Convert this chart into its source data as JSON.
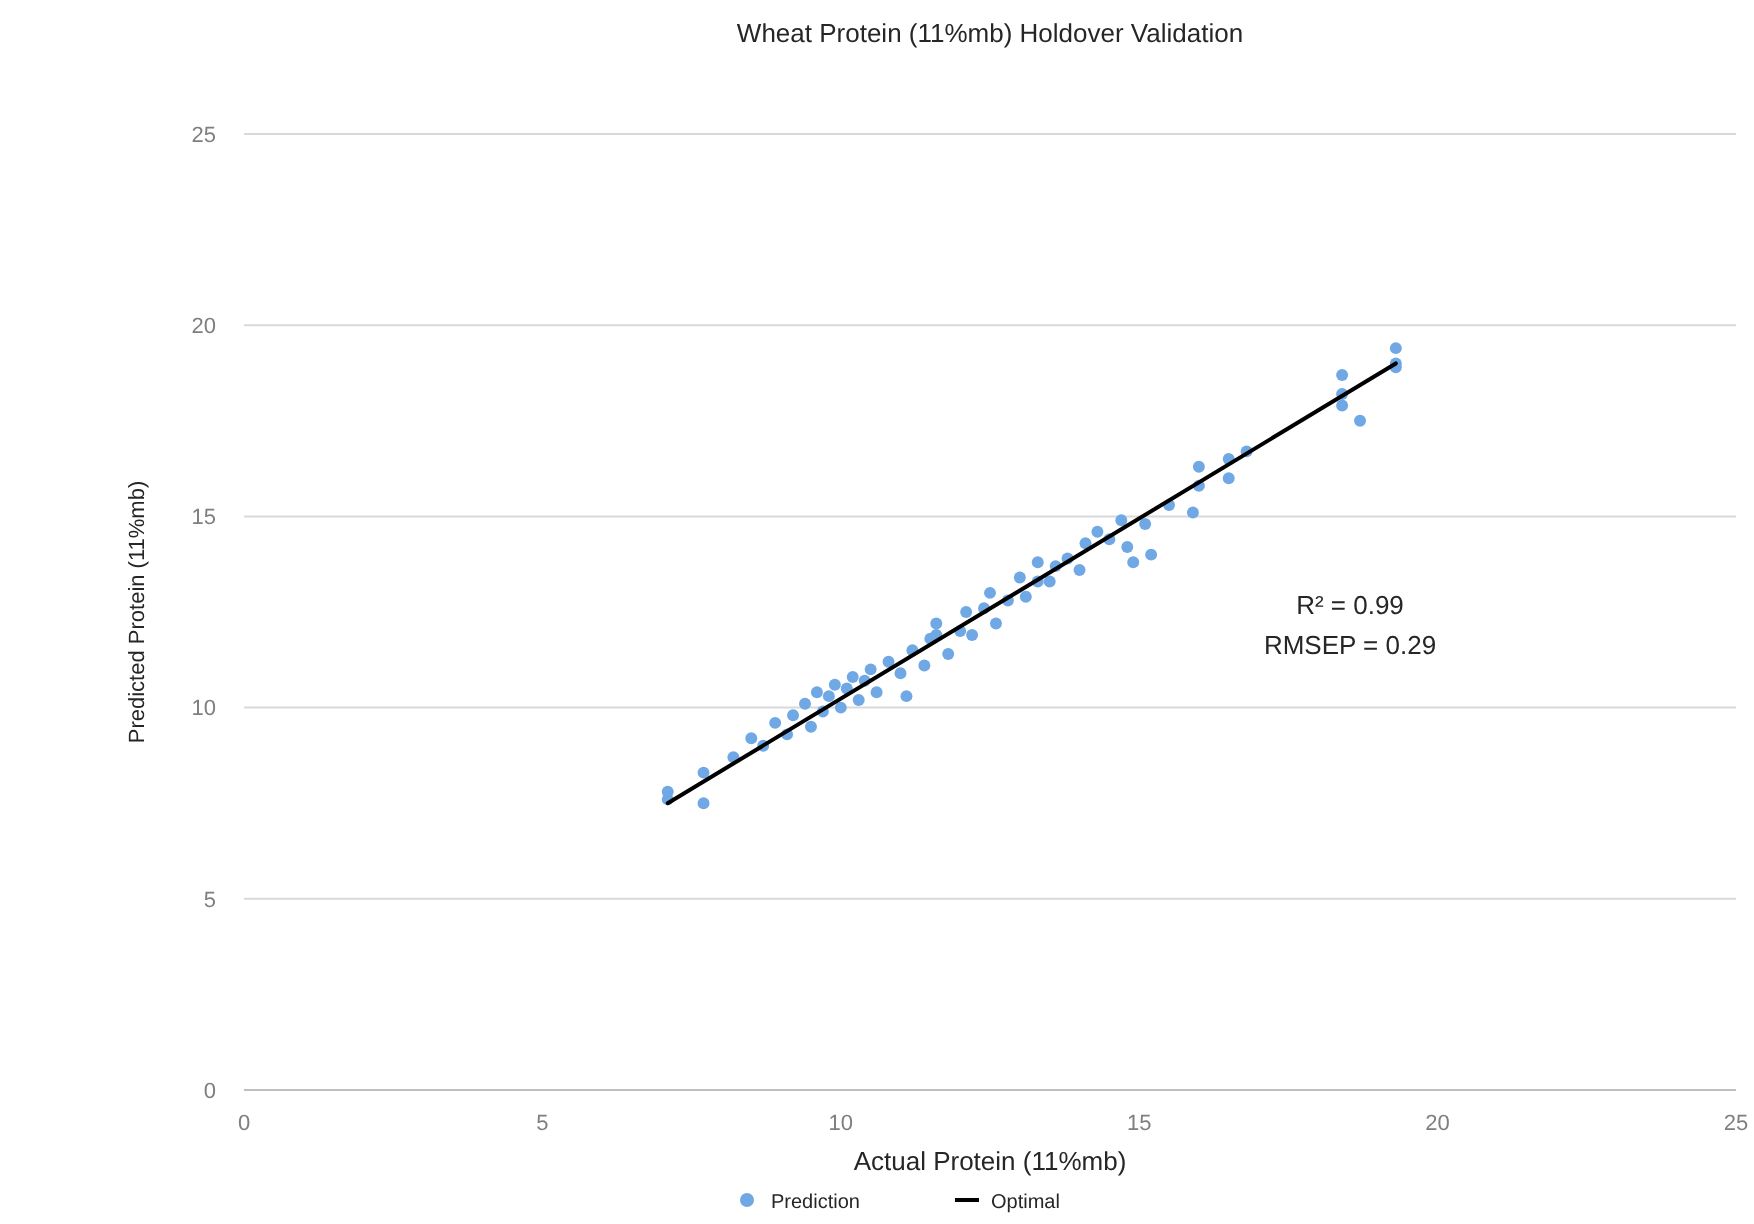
{
  "chart_data": {
    "type": "scatter",
    "title": "Wheat Protein (11%mb) Holdover Validation",
    "xlabel": "Actual Protein (11%mb)",
    "ylabel": "Predicted Protein (11%mb)",
    "xlim": [
      0,
      25
    ],
    "xticks": [
      0,
      5,
      10,
      15,
      20,
      25
    ],
    "ylim": [
      0,
      25
    ],
    "yticks": [
      0,
      5,
      10,
      15,
      20,
      25
    ],
    "grid": "y",
    "legend": "bottom",
    "marker": "circle",
    "annotations": [
      "R² = 0.99",
      "RMSEP = 0.29"
    ],
    "series": [
      {
        "name": "Prediction",
        "color": "#6fa8e4",
        "x": [
          7.1,
          7.1,
          7.7,
          7.7,
          8.2,
          8.5,
          8.7,
          8.9,
          9.1,
          9.2,
          9.4,
          9.5,
          9.6,
          9.7,
          9.8,
          9.9,
          10.0,
          10.1,
          10.2,
          10.3,
          10.4,
          10.5,
          10.6,
          10.8,
          11.0,
          11.1,
          11.2,
          11.4,
          11.5,
          11.6,
          11.8,
          12.0,
          12.1,
          12.2,
          12.4,
          12.5,
          12.6,
          12.8,
          13.0,
          13.1,
          13.3,
          13.5,
          13.6,
          13.8,
          14.0,
          14.1,
          14.3,
          14.5,
          14.7,
          14.8,
          14.9,
          15.2,
          15.1,
          15.5,
          15.9,
          16.0,
          16.0,
          16.5,
          16.5,
          16.8,
          18.4,
          18.4,
          18.4,
          18.7,
          19.3,
          19.3,
          19.3,
          13.3,
          11.6
        ],
        "values": [
          7.8,
          7.6,
          7.5,
          8.3,
          8.7,
          9.2,
          9.0,
          9.6,
          9.3,
          9.8,
          10.1,
          9.5,
          10.4,
          9.9,
          10.3,
          10.6,
          10.0,
          10.5,
          10.8,
          10.2,
          10.7,
          11.0,
          10.4,
          11.2,
          10.9,
          10.3,
          11.5,
          11.1,
          11.8,
          11.9,
          11.4,
          12.0,
          12.5,
          11.9,
          12.6,
          13.0,
          12.2,
          12.8,
          13.4,
          12.9,
          13.8,
          13.3,
          13.7,
          13.9,
          13.6,
          14.3,
          14.6,
          14.4,
          14.9,
          14.2,
          13.8,
          14.0,
          14.8,
          15.3,
          15.1,
          15.8,
          16.3,
          16.0,
          16.5,
          16.7,
          18.7,
          18.2,
          17.9,
          17.5,
          19.4,
          19.0,
          18.9,
          13.3,
          12.2
        ]
      },
      {
        "name": "Optimal",
        "type": "line",
        "color": "#000000",
        "x": [
          7.1,
          19.3
        ],
        "values": [
          7.5,
          19.0
        ],
        "marker": "none"
      }
    ]
  }
}
